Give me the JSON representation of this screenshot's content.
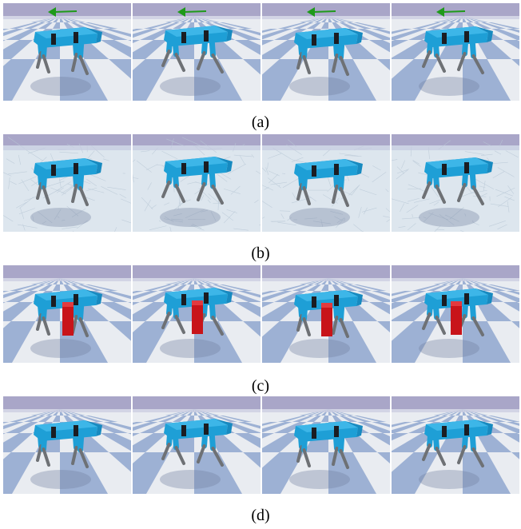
{
  "figure": {
    "rows": [
      {
        "id": "a",
        "caption": "(a)",
        "scene": "checker",
        "arrow": true,
        "box": false,
        "frames": 4,
        "arrow_color": "#1f9a1a"
      },
      {
        "id": "b",
        "caption": "(b)",
        "scene": "ice",
        "arrow": false,
        "box": false,
        "frames": 4
      },
      {
        "id": "c",
        "caption": "(c)",
        "scene": "checker",
        "arrow": false,
        "box": true,
        "frames": 4,
        "box_color": "#c8141a"
      },
      {
        "id": "d",
        "caption": "(d)",
        "scene": "checker",
        "arrow": false,
        "box": false,
        "frames": 4
      }
    ],
    "robot_color": "#1e9fd6",
    "leg_color": "#6e7175",
    "sky_color": "#a9a6c8"
  }
}
